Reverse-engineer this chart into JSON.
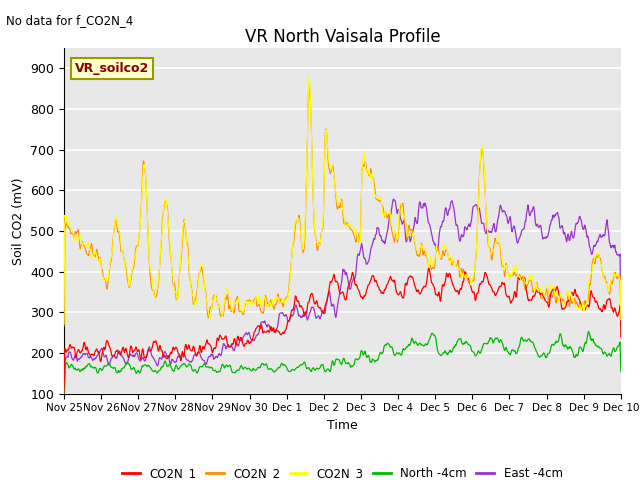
{
  "title": "VR North Vaisala Profile",
  "subtitle": "No data for f_CO2N_4",
  "xlabel": "Time",
  "ylabel": "Soil CO2 (mV)",
  "ylim": [
    100,
    950
  ],
  "background_color": "#e8e8e8",
  "series_colors": {
    "CO2N_1": "#ff0000",
    "CO2N_2": "#ff8c00",
    "CO2N_3": "#ffff00",
    "North_4cm": "#00bb00",
    "East_4cm": "#9933cc"
  },
  "annotation_text": "VR_soilco2",
  "tick_labels": [
    "Nov 25",
    "Nov 26",
    "Nov 27",
    "Nov 28",
    "Nov 29",
    "Nov 30",
    "Dec 1",
    "Dec 2",
    "Dec 3",
    "Dec 4",
    "Dec 5",
    "Dec 6",
    "Dec 7",
    "Dec 8",
    "Dec 9",
    "Dec 10"
  ],
  "yticks": [
    100,
    200,
    300,
    400,
    500,
    600,
    700,
    800,
    900
  ]
}
